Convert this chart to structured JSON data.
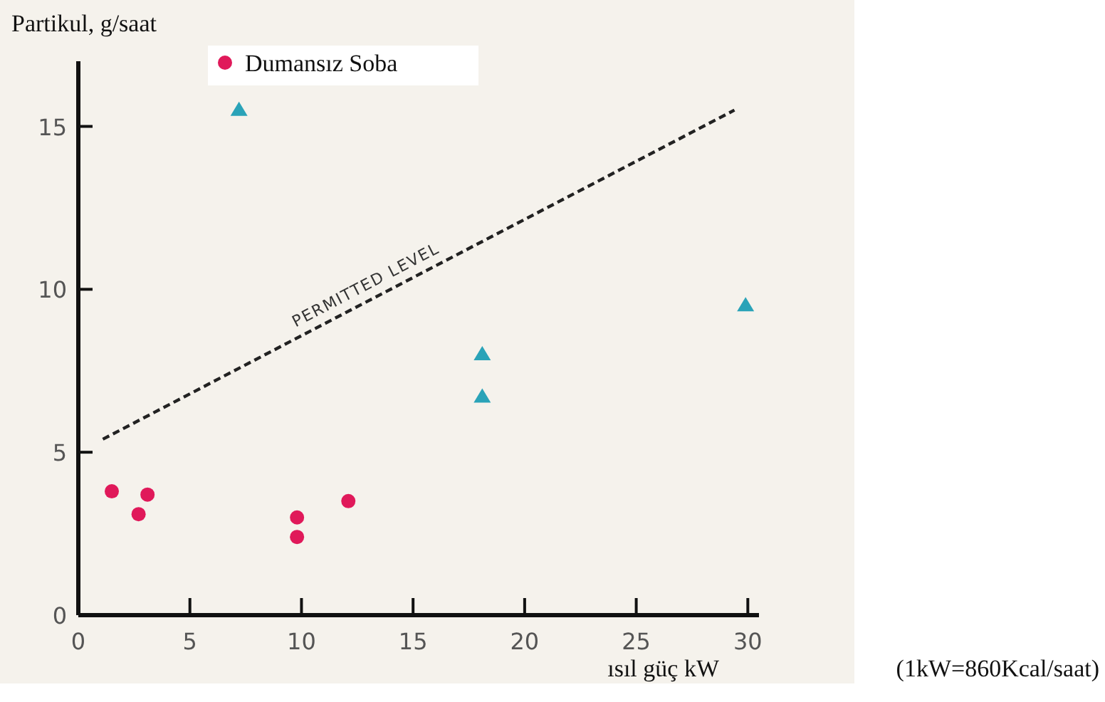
{
  "chart_data": {
    "type": "scatter",
    "ylabel": "Partikul, g/saat",
    "xlabel": "ısıl güç kW",
    "annotations": [
      "(1kW=860Kcal/saat)"
    ],
    "xlim": [
      0,
      30.5
    ],
    "ylim": [
      0,
      17
    ],
    "xticks": [
      0,
      5,
      10,
      15,
      20,
      25,
      30
    ],
    "yticks": [
      0,
      5,
      10,
      15
    ],
    "grid": false,
    "legend": "top left",
    "series": [
      {
        "name": "Dumansız Soba",
        "color": "#e0195a",
        "marker": "circle",
        "x": [
          1.5,
          2.7,
          3.1,
          9.8,
          9.8,
          12.1
        ],
        "values": [
          3.8,
          3.1,
          3.7,
          3.0,
          2.4,
          3.5
        ]
      },
      {
        "color": "#2aa3b8",
        "marker": "triangle",
        "x": [
          7.2,
          18.1,
          18.1,
          29.9
        ],
        "values": [
          15.5,
          8.0,
          6.7,
          9.5
        ]
      },
      {
        "name": "PERMITTED LEVEL",
        "type": "line",
        "color": "#222222",
        "line_style": "dashed",
        "x": [
          1.1,
          29.4
        ],
        "values": [
          5.4,
          15.5
        ]
      }
    ]
  }
}
